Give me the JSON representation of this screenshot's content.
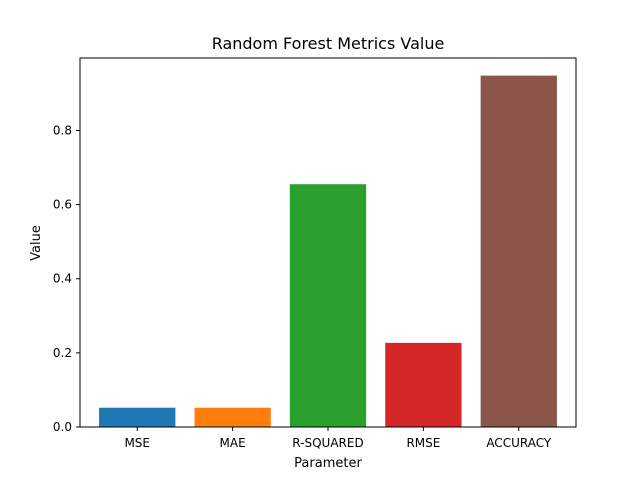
{
  "chart_data": {
    "type": "bar",
    "title": "Random Forest Metrics Value",
    "xlabel": "Parameter",
    "ylabel": "Value",
    "categories": [
      "MSE",
      "MAE",
      "R-SQUARED",
      "RMSE",
      "ACCURACY"
    ],
    "values": [
      0.052,
      0.052,
      0.655,
      0.227,
      0.948
    ],
    "colors": [
      "#1f77b4",
      "#ff7f0e",
      "#2ca02c",
      "#d62728",
      "#8c564b"
    ],
    "ylim": [
      0,
      0.9955
    ],
    "yticks": [
      0.0,
      0.2,
      0.4,
      0.6,
      0.8
    ],
    "ytick_labels": [
      "0.0",
      "0.2",
      "0.4",
      "0.6",
      "0.8"
    ],
    "grid": false,
    "legend": "none"
  }
}
